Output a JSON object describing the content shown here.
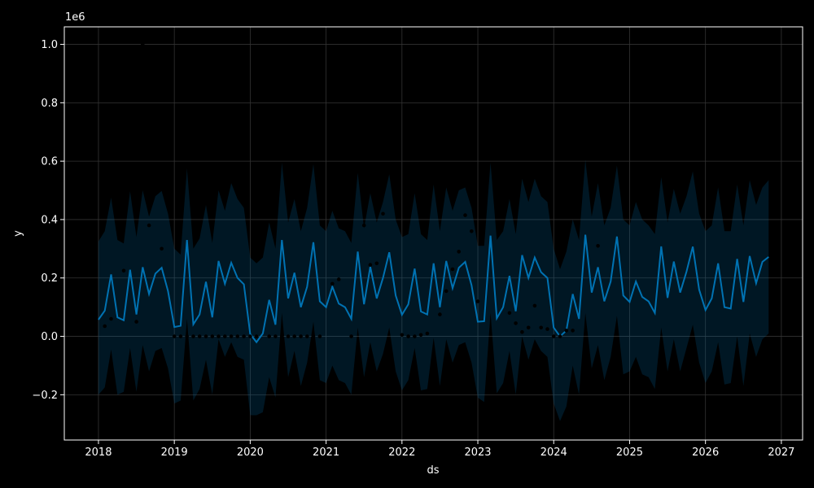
{
  "chart_data": {
    "type": "line",
    "xlabel": "ds",
    "ylabel": "y",
    "y_offset_label": "1e6",
    "x_ticks": [
      "2018",
      "2019",
      "2020",
      "2021",
      "2022",
      "2023",
      "2024",
      "2025",
      "2026",
      "2027"
    ],
    "y_ticks": [
      "−0.2",
      "0.0",
      "0.2",
      "0.4",
      "0.6",
      "0.8",
      "1.0"
    ],
    "xlim": [
      2017.55,
      2027.28
    ],
    "ylim": [
      -0.355,
      1.06
    ],
    "grid": true,
    "colors": {
      "background": "#000000",
      "forecast_line": "#0072B2",
      "interval_fill": "#0072B2",
      "observed_points": "#000000",
      "axes": "#ffffff",
      "grid": "#333333"
    },
    "forecast": {
      "x": [
        2018.0,
        2018.083,
        2018.167,
        2018.25,
        2018.333,
        2018.417,
        2018.5,
        2018.583,
        2018.667,
        2018.75,
        2018.833,
        2018.917,
        2019.0,
        2019.083,
        2019.167,
        2019.25,
        2019.333,
        2019.417,
        2019.5,
        2019.583,
        2019.667,
        2019.75,
        2019.833,
        2019.917,
        2020.0,
        2020.083,
        2020.167,
        2020.25,
        2020.333,
        2020.417,
        2020.5,
        2020.583,
        2020.667,
        2020.75,
        2020.833,
        2020.917,
        2021.0,
        2021.083,
        2021.167,
        2021.25,
        2021.333,
        2021.417,
        2021.5,
        2021.583,
        2021.667,
        2021.75,
        2021.833,
        2021.917,
        2022.0,
        2022.083,
        2022.167,
        2022.25,
        2022.333,
        2022.417,
        2022.5,
        2022.583,
        2022.667,
        2022.75,
        2022.833,
        2022.917,
        2023.0,
        2023.083,
        2023.167,
        2023.25,
        2023.333,
        2023.417,
        2023.5,
        2023.583,
        2023.667,
        2023.75,
        2023.833,
        2023.917,
        2024.0,
        2024.083,
        2024.167,
        2024.25,
        2024.333,
        2024.417,
        2024.5,
        2024.583,
        2024.667,
        2024.75,
        2024.833,
        2024.917,
        2025.0,
        2025.083,
        2025.167,
        2025.25,
        2025.333,
        2025.417,
        2025.5,
        2025.583,
        2025.667,
        2025.75,
        2025.833,
        2025.917,
        2026.0,
        2026.083,
        2026.167,
        2026.25,
        2026.333,
        2026.417,
        2026.5,
        2026.583,
        2026.667,
        2026.75,
        2026.833
      ],
      "yhat": [
        0.057,
        0.088,
        0.212,
        0.065,
        0.055,
        0.228,
        0.075,
        0.237,
        0.145,
        0.215,
        0.235,
        0.155,
        0.032,
        0.036,
        0.33,
        0.041,
        0.075,
        0.187,
        0.065,
        0.258,
        0.18,
        0.252,
        0.2,
        0.178,
        0.008,
        -0.02,
        0.01,
        0.125,
        0.04,
        0.33,
        0.13,
        0.218,
        0.1,
        0.17,
        0.322,
        0.12,
        0.1,
        0.17,
        0.112,
        0.1,
        0.06,
        0.29,
        0.11,
        0.238,
        0.13,
        0.2,
        0.288,
        0.14,
        0.074,
        0.11,
        0.232,
        0.085,
        0.075,
        0.25,
        0.1,
        0.258,
        0.165,
        0.235,
        0.255,
        0.175,
        0.05,
        0.052,
        0.345,
        0.062,
        0.1,
        0.207,
        0.086,
        0.278,
        0.2,
        0.27,
        0.22,
        0.2,
        0.03,
        0.0,
        0.02,
        0.145,
        0.06,
        0.348,
        0.15,
        0.237,
        0.12,
        0.188,
        0.342,
        0.14,
        0.118,
        0.188,
        0.135,
        0.12,
        0.08,
        0.308,
        0.132,
        0.256,
        0.15,
        0.222,
        0.307,
        0.16,
        0.09,
        0.13,
        0.25,
        0.1,
        0.095,
        0.265,
        0.118,
        0.275,
        0.182,
        0.255,
        0.272
      ],
      "upper": [
        0.325,
        0.36,
        0.475,
        0.33,
        0.318,
        0.497,
        0.34,
        0.5,
        0.41,
        0.48,
        0.498,
        0.42,
        0.3,
        0.28,
        0.575,
        0.3,
        0.335,
        0.45,
        0.32,
        0.5,
        0.43,
        0.525,
        0.47,
        0.44,
        0.27,
        0.25,
        0.27,
        0.39,
        0.3,
        0.595,
        0.39,
        0.47,
        0.36,
        0.44,
        0.59,
        0.38,
        0.36,
        0.43,
        0.37,
        0.36,
        0.32,
        0.56,
        0.37,
        0.49,
        0.39,
        0.46,
        0.555,
        0.4,
        0.34,
        0.35,
        0.49,
        0.35,
        0.33,
        0.52,
        0.36,
        0.51,
        0.43,
        0.5,
        0.51,
        0.44,
        0.31,
        0.31,
        0.595,
        0.33,
        0.36,
        0.47,
        0.35,
        0.54,
        0.46,
        0.54,
        0.48,
        0.46,
        0.3,
        0.23,
        0.29,
        0.4,
        0.33,
        0.605,
        0.41,
        0.525,
        0.38,
        0.44,
        0.585,
        0.4,
        0.38,
        0.46,
        0.4,
        0.38,
        0.35,
        0.545,
        0.39,
        0.505,
        0.42,
        0.48,
        0.565,
        0.42,
        0.36,
        0.38,
        0.51,
        0.36,
        0.36,
        0.52,
        0.38,
        0.535,
        0.45,
        0.51,
        0.535
      ],
      "lower": [
        -0.2,
        -0.175,
        -0.045,
        -0.2,
        -0.19,
        -0.04,
        -0.19,
        -0.03,
        -0.12,
        -0.05,
        -0.04,
        -0.11,
        -0.23,
        -0.22,
        0.06,
        -0.22,
        -0.18,
        -0.08,
        -0.2,
        -0.01,
        -0.07,
        -0.02,
        -0.07,
        -0.08,
        -0.27,
        -0.27,
        -0.26,
        -0.14,
        -0.21,
        0.08,
        -0.14,
        -0.05,
        -0.17,
        -0.09,
        0.05,
        -0.15,
        -0.16,
        -0.1,
        -0.15,
        -0.16,
        -0.2,
        0.03,
        -0.14,
        -0.02,
        -0.12,
        -0.06,
        0.03,
        -0.12,
        -0.185,
        -0.15,
        -0.04,
        -0.185,
        -0.18,
        -0.005,
        -0.17,
        -0.01,
        -0.09,
        -0.03,
        -0.02,
        -0.09,
        -0.21,
        -0.225,
        0.08,
        -0.195,
        -0.16,
        -0.05,
        -0.2,
        0.0,
        -0.08,
        -0.01,
        -0.05,
        -0.07,
        -0.23,
        -0.29,
        -0.24,
        -0.1,
        -0.2,
        0.08,
        -0.11,
        -0.03,
        -0.15,
        -0.07,
        0.07,
        -0.13,
        -0.12,
        -0.07,
        -0.13,
        -0.14,
        -0.18,
        0.03,
        -0.12,
        -0.01,
        -0.12,
        -0.04,
        0.04,
        -0.09,
        -0.16,
        -0.12,
        -0.02,
        -0.165,
        -0.16,
        0.0,
        -0.17,
        0.01,
        -0.07,
        -0.01,
        0.01
      ]
    },
    "observed": {
      "x": [
        2018.083,
        2018.167,
        2018.333,
        2018.5,
        2018.583,
        2018.667,
        2018.833,
        2019.0,
        2019.083,
        2019.167,
        2019.25,
        2019.333,
        2019.417,
        2019.5,
        2019.583,
        2019.667,
        2019.75,
        2019.833,
        2019.917,
        2020.0,
        2020.083,
        2020.25,
        2020.333,
        2020.417,
        2020.5,
        2020.583,
        2020.667,
        2020.75,
        2020.833,
        2020.917,
        2021.083,
        2021.167,
        2021.333,
        2021.5,
        2021.583,
        2021.667,
        2021.75,
        2022.0,
        2022.083,
        2022.167,
        2022.25,
        2022.333,
        2022.5,
        2022.583,
        2022.667,
        2022.75,
        2022.833,
        2022.917,
        2023.0,
        2023.417,
        2023.5,
        2023.583,
        2023.667,
        2023.75,
        2023.833,
        2023.917,
        2024.0,
        2024.083,
        2024.167,
        2024.25,
        2024.583
      ],
      "y": [
        0.035,
        0.06,
        0.225,
        0.05,
        1.0,
        0.38,
        0.3,
        0.0,
        0.0,
        0.0,
        0.0,
        0.0,
        0.0,
        0.0,
        0.0,
        0.0,
        0.0,
        0.0,
        0.0,
        0.0,
        0.0,
        0.0,
        0.0,
        0.0,
        0.0,
        0.0,
        0.0,
        0.0,
        0.0,
        0.0,
        0.18,
        0.195,
        0.0,
        0.38,
        0.245,
        0.25,
        0.42,
        0.005,
        0.0,
        0.0,
        0.005,
        0.01,
        0.075,
        0.155,
        0.23,
        0.29,
        0.415,
        0.36,
        0.12,
        0.08,
        0.045,
        0.015,
        0.03,
        0.105,
        0.03,
        0.025,
        0.0,
        0.0,
        0.02,
        0.02,
        0.31
      ]
    }
  }
}
